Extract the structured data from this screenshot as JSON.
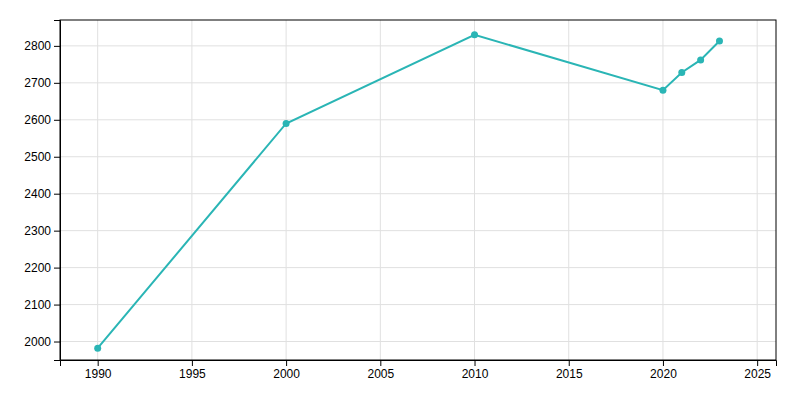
{
  "chart_data": {
    "type": "line",
    "x": [
      1990,
      2000,
      2010,
      2020,
      2021,
      2022,
      2023
    ],
    "values": [
      1982,
      2590,
      2830,
      2680,
      2728,
      2762,
      2813
    ],
    "color": "#2ab5b5",
    "marker": "circle",
    "xlim": [
      1988,
      2026
    ],
    "ylim": [
      1950,
      2870
    ],
    "xticks": [
      1990,
      1995,
      2000,
      2005,
      2010,
      2015,
      2020,
      2025
    ],
    "yticks": [
      2000,
      2100,
      2200,
      2300,
      2400,
      2500,
      2600,
      2700,
      2800
    ],
    "grid": true
  }
}
